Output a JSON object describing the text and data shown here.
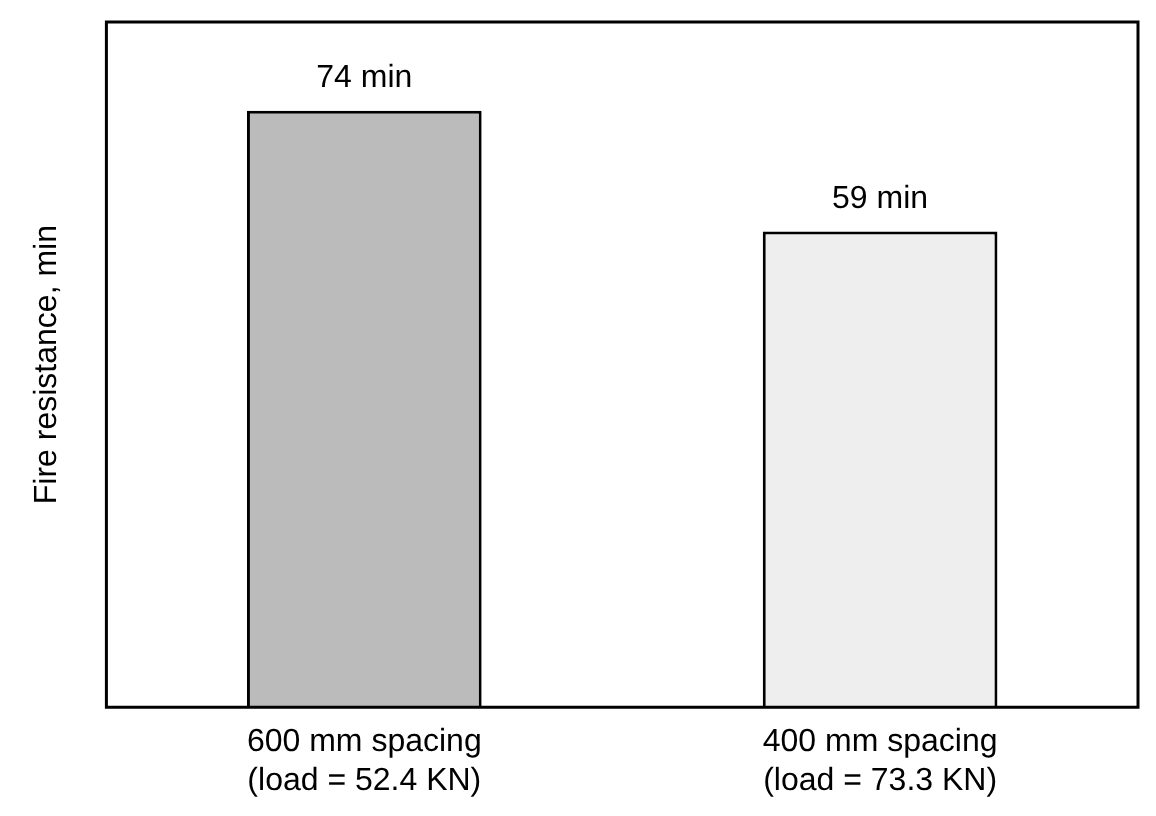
{
  "chart_data": {
    "type": "bar",
    "ylabel": "Fire resistance, min",
    "categories": [
      "600 mm spacing\n(load = 52.4 KN)",
      "400 mm spacing\n(load = 73.3 KN)"
    ],
    "values": [
      74,
      59
    ],
    "colors": [
      "#bbbbbb",
      "#eeeeee"
    ],
    "value_labels": [
      "74 min",
      "59 min"
    ],
    "ylim": [
      0,
      85
    ],
    "tick_labels": "x",
    "grid": false,
    "legend": false
  }
}
